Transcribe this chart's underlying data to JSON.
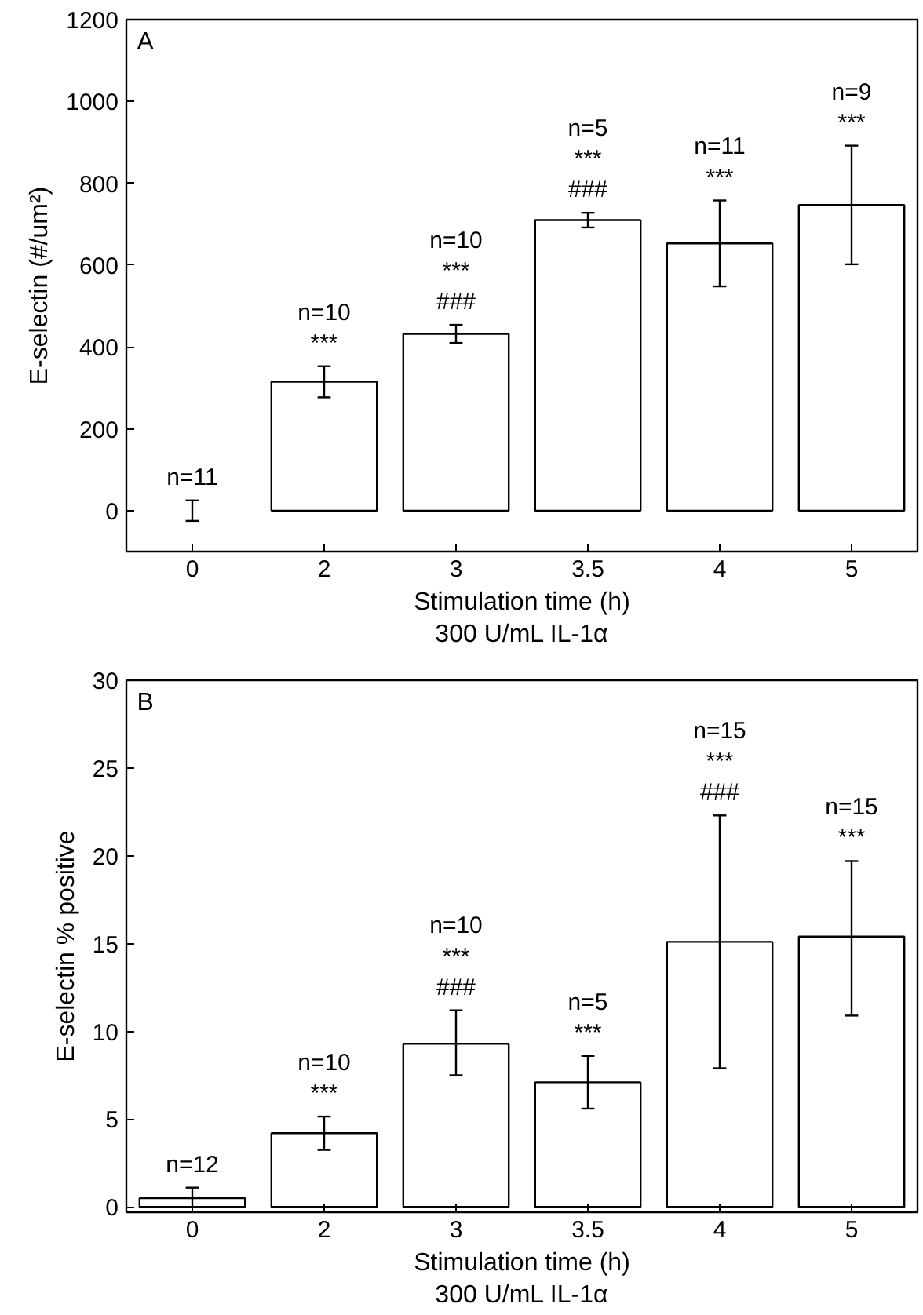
{
  "chart_data": [
    {
      "type": "bar",
      "ylabel": "E-selectin (#/um²)",
      "xlabel": "Stimulation time (h)\n300 U/mL IL-1α",
      "categories": [
        "0",
        "2",
        "3",
        "3.5",
        "4",
        "5"
      ],
      "series": [
        {
          "color": "#ffffff",
          "values": [
            0,
            315,
            432,
            710,
            653,
            747
          ],
          "errors": [
            25,
            38,
            22,
            18,
            105,
            145
          ]
        }
      ],
      "ylim": [
        -100,
        1200
      ],
      "yticks": [
        0,
        200,
        400,
        600,
        800,
        1000,
        1200
      ],
      "grid": false,
      "annotations": [
        "A",
        "n=11",
        "n=10\n***",
        "n=10\n***\n###",
        "n=5\n***\n###",
        "n=11\n***",
        "n=9\n***"
      ]
    },
    {
      "type": "bar",
      "ylabel": "E-selectin % positive",
      "xlabel": "Stimulation time (h)\n300 U/mL IL-1α",
      "categories": [
        "0",
        "2",
        "3",
        "3.5",
        "4",
        "5"
      ],
      "series": [
        {
          "color": "#ffffff",
          "values": [
            0.5,
            4.2,
            9.3,
            7.1,
            15.1,
            15.4
          ],
          "errors": [
            [
              0,
              1.1
            ],
            0.95,
            [
              7.5,
              11.2
            ],
            1.5,
            [
              7.9,
              22.3
            ],
            [
              10.9,
              19.7
            ]
          ]
        }
      ],
      "ylim": [
        -0.3,
        30
      ],
      "yticks": [
        0,
        5,
        10,
        15,
        20,
        25,
        30
      ],
      "grid": false,
      "annotations": [
        "B",
        "n=12",
        "n=10\n***",
        "n=10\n***\n###",
        "n=5\n***",
        "n=15\n***\n###",
        "n=15\n***"
      ]
    }
  ]
}
